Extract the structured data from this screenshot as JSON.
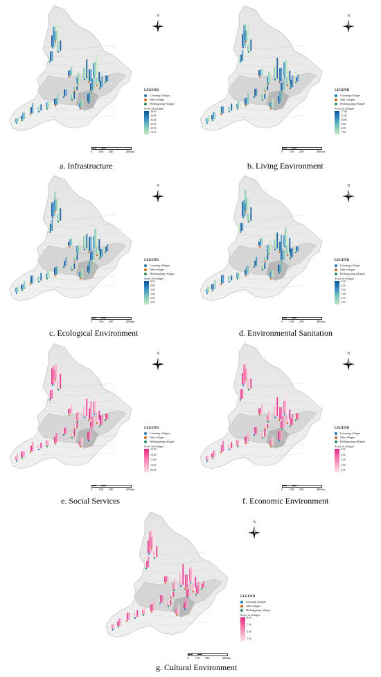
{
  "colors": {
    "liaoning": "#1f77b4",
    "jilin": "#d2691e",
    "heilongjiang": "#2e8b57",
    "blue_high": "#08519c",
    "blue_low": "#c7e9c0",
    "pink_high": "#e7298a",
    "pink_low": "#fde0e6"
  },
  "north_label": "N",
  "legend_title": "LEGEND",
  "legend_items": [
    "Liaoning villages",
    "Jilin villages",
    "Heilongjiang villages"
  ],
  "score_title": "Score of villages",
  "scale_labels": [
    "0",
    "100",
    "200",
    "400km"
  ],
  "panels": [
    {
      "caption": "a. Infrastructure",
      "palette": "blue",
      "ticks": [
        "28.00",
        "26.00",
        "24.00",
        "22.00",
        "20.00",
        "18.00"
      ]
    },
    {
      "caption": "b. Living Environment",
      "palette": "blue",
      "ticks": [
        "17.00",
        "11.00",
        "10.00",
        "9.00",
        "8.00",
        "7.00"
      ]
    },
    {
      "caption": "c. Ecological Environment",
      "palette": "blue",
      "ticks": [
        "6.50",
        "6.00",
        "5.50",
        "5.00",
        "4.50",
        "4.00"
      ]
    },
    {
      "caption": "d. Environmental Sanitation",
      "palette": "blue",
      "ticks": [
        "6.50",
        "6.25",
        "5.50",
        "5.00",
        "4.75",
        "4.00"
      ]
    },
    {
      "caption": "e. Social Services",
      "palette": "pink",
      "ticks": [
        "15.00",
        "14.00",
        "12.00",
        "10.00",
        "08.00"
      ]
    },
    {
      "caption": "f. Economic Environment",
      "palette": "pink",
      "ticks": [
        "6.50",
        "4.00",
        "3.50",
        "3.00",
        "2.50"
      ]
    },
    {
      "caption": "g. Cultural Environment",
      "palette": "pink",
      "ticks": [
        "8.50",
        "7.50",
        "6.50",
        "5.50"
      ]
    }
  ]
}
